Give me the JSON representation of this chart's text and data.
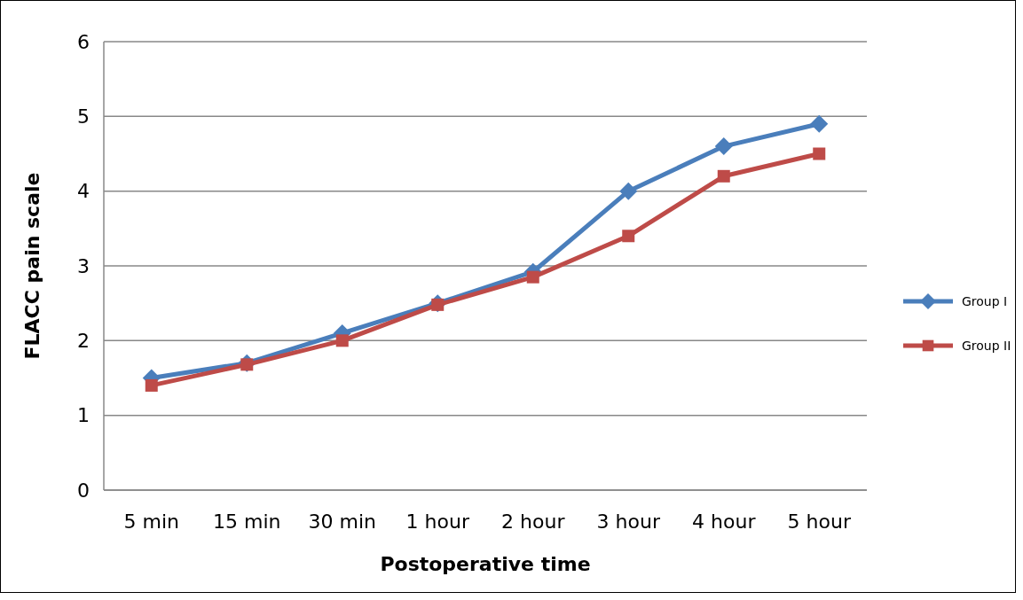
{
  "chart_data": {
    "type": "line",
    "xlabel": "Postoperative time",
    "ylabel": "FLACC pain scale",
    "categories": [
      "5 min",
      "15 min",
      "30 min",
      "1 hour",
      "2 hour",
      "3 hour",
      "4 hour",
      "5 hour"
    ],
    "series": [
      {
        "name": "Group I",
        "color": "#4a7ebb",
        "marker": "diamond",
        "values": [
          1.5,
          1.7,
          2.1,
          2.5,
          2.92,
          4.0,
          4.6,
          4.9
        ]
      },
      {
        "name": "Group II",
        "color": "#be4b48",
        "marker": "square",
        "values": [
          1.4,
          1.68,
          2.0,
          2.48,
          2.85,
          3.4,
          4.2,
          4.5
        ]
      }
    ],
    "ylim": [
      0,
      6
    ],
    "yticks": [
      0,
      1,
      2,
      3,
      4,
      5,
      6
    ],
    "grid": "y",
    "legend": "right",
    "line_style": "solid"
  }
}
